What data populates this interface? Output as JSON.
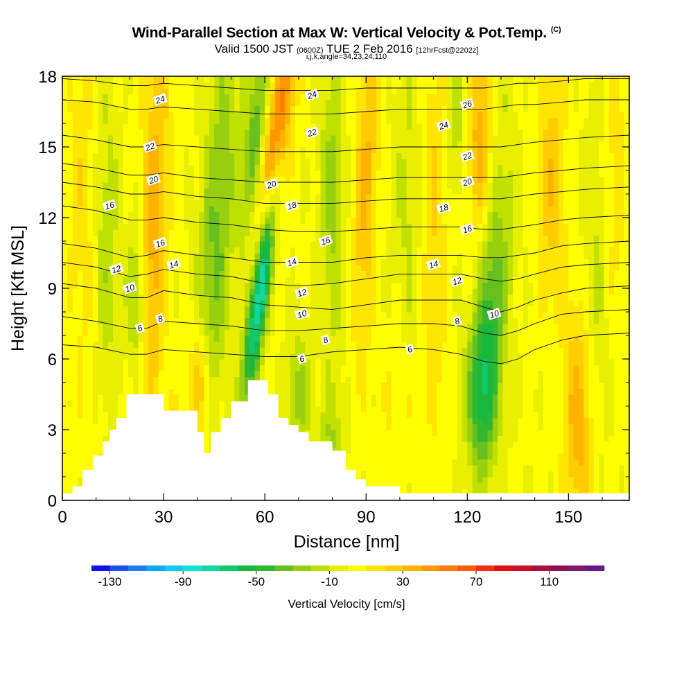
{
  "header": {
    "title": "Wind-Parallel Section at Max W: Vertical Velocity & Pot.Temp.",
    "copyright": "(C)",
    "subtitle_valid": "Valid 1500 JST",
    "subtitle_utc": "(0600Z)",
    "subtitle_date": "TUE 2 Feb 2016",
    "subtitle_fcst": "[12hrFcst@2202z]",
    "param_line": "i,j,k,angle=34,23,24,110"
  },
  "chart_data": {
    "type": "heatmap",
    "xlabel": "Distance [nm]",
    "ylabel": "Height [Kft MSL]",
    "xlim": [
      0,
      168
    ],
    "ylim": [
      0,
      18
    ],
    "x_ticks": [
      0,
      30,
      60,
      90,
      120,
      150
    ],
    "y_ticks": [
      0,
      3,
      6,
      9,
      12,
      15,
      18
    ],
    "grid": false,
    "colorbar": {
      "title": "Vertical Velocity [cm/s]",
      "tick_labels": [
        -130,
        -90,
        -50,
        -10,
        30,
        70,
        110
      ],
      "bounds": [
        -140,
        140
      ],
      "step": 10,
      "colors": [
        "#1010e8",
        "#1e50f0",
        "#1e80f0",
        "#10a8f0",
        "#10c8f0",
        "#10e0d8",
        "#10d8a0",
        "#10c870",
        "#18b840",
        "#30b830",
        "#68c020",
        "#98d010",
        "#c0e000",
        "#e8f000",
        "#ffff00",
        "#ffe600",
        "#ffcc00",
        "#ffb200",
        "#ff9800",
        "#ff7c00",
        "#ff5a00",
        "#f03010",
        "#e01010",
        "#c81028",
        "#a81040",
        "#901050",
        "#801868",
        "#6a1888"
      ]
    },
    "terrain": [
      [
        0,
        0.3
      ],
      [
        3,
        0.3
      ],
      [
        3,
        0.6
      ],
      [
        6,
        0.6
      ],
      [
        6,
        1.3
      ],
      [
        9,
        1.3
      ],
      [
        9,
        1.9
      ],
      [
        12,
        1.9
      ],
      [
        12,
        2.5
      ],
      [
        14,
        2.5
      ],
      [
        14,
        3.0
      ],
      [
        16,
        3.0
      ],
      [
        16,
        3.5
      ],
      [
        19,
        3.5
      ],
      [
        19,
        4.5
      ],
      [
        30,
        4.5
      ],
      [
        30,
        3.8
      ],
      [
        40,
        3.8
      ],
      [
        40,
        2.9
      ],
      [
        42,
        2.9
      ],
      [
        42,
        2.0
      ],
      [
        44,
        2.0
      ],
      [
        44,
        2.9
      ],
      [
        47,
        2.9
      ],
      [
        47,
        3.5
      ],
      [
        50,
        3.5
      ],
      [
        50,
        4.2
      ],
      [
        55,
        4.2
      ],
      [
        55,
        5.1
      ],
      [
        61,
        5.1
      ],
      [
        61,
        4.5
      ],
      [
        64,
        4.5
      ],
      [
        64,
        3.5
      ],
      [
        67,
        3.5
      ],
      [
        67,
        3.2
      ],
      [
        70,
        3.2
      ],
      [
        70,
        2.9
      ],
      [
        73,
        2.9
      ],
      [
        73,
        2.5
      ],
      [
        80,
        2.5
      ],
      [
        80,
        2.1
      ],
      [
        84,
        2.1
      ],
      [
        84,
        1.3
      ],
      [
        87,
        1.3
      ],
      [
        87,
        0.9
      ],
      [
        90,
        0.9
      ],
      [
        90,
        0.6
      ],
      [
        100,
        0.6
      ],
      [
        100,
        0.3
      ],
      [
        168,
        0.3
      ]
    ],
    "theta_contours": [
      {
        "label": "6",
        "x": [
          0,
          10,
          20,
          25,
          30,
          40,
          50,
          60,
          70,
          80,
          90,
          100,
          110,
          118,
          125,
          130,
          135,
          140,
          148,
          155,
          168
        ],
        "y": [
          6.6,
          6.5,
          6.2,
          6.2,
          6.4,
          6.3,
          6.2,
          6.1,
          6.1,
          6.3,
          6.4,
          6.5,
          6.4,
          6.2,
          5.9,
          5.8,
          6.0,
          6.4,
          6.8,
          7.0,
          7.1
        ]
      },
      {
        "label": "8",
        "x": [
          0,
          10,
          20,
          25,
          30,
          40,
          50,
          60,
          70,
          80,
          90,
          100,
          110,
          118,
          125,
          130,
          135,
          140,
          148,
          155,
          168
        ],
        "y": [
          7.8,
          7.6,
          7.3,
          7.3,
          7.6,
          7.5,
          7.4,
          7.2,
          7.2,
          7.3,
          7.4,
          7.5,
          7.5,
          7.4,
          7.1,
          7.0,
          7.2,
          7.5,
          7.9,
          8.0,
          8.1
        ]
      },
      {
        "label": "10",
        "x": [
          0,
          10,
          20,
          25,
          30,
          40,
          50,
          60,
          70,
          80,
          90,
          100,
          110,
          118,
          125,
          130,
          135,
          140,
          148,
          155,
          168
        ],
        "y": [
          9.2,
          9.0,
          8.6,
          8.6,
          8.9,
          8.7,
          8.6,
          8.3,
          8.2,
          8.1,
          8.3,
          8.5,
          8.5,
          8.5,
          8.2,
          8.0,
          8.2,
          8.5,
          8.8,
          9.0,
          9.1
        ]
      },
      {
        "label": "12",
        "x": [
          0,
          10,
          20,
          25,
          30,
          40,
          50,
          60,
          70,
          80,
          90,
          100,
          110,
          118,
          125,
          130,
          135,
          140,
          148,
          155,
          168
        ],
        "y": [
          10.1,
          9.9,
          9.5,
          9.6,
          9.8,
          9.6,
          9.5,
          9.2,
          9.1,
          9.2,
          9.4,
          9.6,
          9.6,
          9.6,
          9.4,
          9.3,
          9.4,
          9.6,
          9.9,
          10.0,
          10.1
        ]
      },
      {
        "label": "14",
        "x": [
          0,
          10,
          20,
          25,
          30,
          40,
          50,
          60,
          70,
          80,
          90,
          100,
          110,
          118,
          125,
          130,
          135,
          140,
          148,
          155,
          168
        ],
        "y": [
          10.9,
          10.7,
          10.3,
          10.4,
          10.6,
          10.4,
          10.3,
          10.1,
          10.1,
          10.1,
          10.3,
          10.4,
          10.4,
          10.4,
          10.3,
          10.3,
          10.4,
          10.5,
          10.8,
          10.9,
          11.0
        ]
      },
      {
        "label": "16",
        "x": [
          0,
          10,
          20,
          25,
          30,
          40,
          50,
          60,
          70,
          80,
          90,
          100,
          110,
          118,
          125,
          130,
          135,
          140,
          148,
          155,
          168
        ],
        "y": [
          12.5,
          12.3,
          11.9,
          11.9,
          12.0,
          11.8,
          11.7,
          11.5,
          11.4,
          11.4,
          11.5,
          11.6,
          11.6,
          11.6,
          11.5,
          11.5,
          11.6,
          11.7,
          11.9,
          12.0,
          12.1
        ]
      },
      {
        "label": "18",
        "x": [
          0,
          10,
          20,
          25,
          30,
          40,
          50,
          60,
          70,
          80,
          90,
          100,
          110,
          118,
          125,
          130,
          135,
          140,
          148,
          155,
          168
        ],
        "y": [
          13.5,
          13.3,
          13.0,
          13.0,
          13.1,
          12.9,
          12.8,
          12.6,
          12.6,
          12.6,
          12.7,
          12.8,
          12.8,
          12.8,
          12.8,
          12.8,
          12.9,
          13.0,
          13.1,
          13.2,
          13.3
        ]
      },
      {
        "label": "20",
        "x": [
          0,
          10,
          20,
          25,
          30,
          40,
          50,
          60,
          70,
          80,
          90,
          100,
          110,
          118,
          125,
          130,
          135,
          140,
          148,
          155,
          168
        ],
        "y": [
          14.3,
          14.1,
          13.8,
          13.8,
          13.9,
          13.7,
          13.6,
          13.5,
          13.5,
          13.5,
          13.6,
          13.7,
          13.7,
          13.7,
          13.7,
          13.7,
          13.8,
          13.9,
          14.0,
          14.1,
          14.2
        ]
      },
      {
        "label": "22",
        "x": [
          0,
          10,
          20,
          25,
          30,
          40,
          50,
          60,
          70,
          80,
          90,
          100,
          110,
          118,
          125,
          130,
          135,
          140,
          148,
          155,
          168
        ],
        "y": [
          15.5,
          15.3,
          15.0,
          15.0,
          15.1,
          15.0,
          14.9,
          14.8,
          14.8,
          14.8,
          14.9,
          15.0,
          15.0,
          15.0,
          15.0,
          15.0,
          15.1,
          15.2,
          15.3,
          15.4,
          15.5
        ]
      },
      {
        "label": "24",
        "x": [
          0,
          10,
          20,
          25,
          30,
          40,
          50,
          60,
          70,
          80,
          90,
          100,
          110,
          118,
          125,
          130,
          135,
          140,
          148,
          155,
          168
        ],
        "y": [
          17.0,
          16.9,
          16.6,
          16.6,
          16.7,
          16.6,
          16.5,
          16.4,
          16.4,
          16.4,
          16.5,
          16.6,
          16.6,
          16.6,
          16.6,
          16.7,
          16.8,
          16.8,
          16.9,
          17.0,
          17.0
        ]
      },
      {
        "label": "26",
        "x": [
          0,
          10,
          20,
          25,
          30,
          40,
          50,
          60,
          70,
          80,
          90,
          100,
          110,
          118,
          125,
          130,
          135,
          140,
          148,
          155,
          168
        ],
        "y": [
          17.9,
          17.8,
          17.6,
          17.6,
          17.7,
          17.6,
          17.5,
          17.4,
          17.4,
          17.4,
          17.5,
          17.5,
          17.5,
          17.5,
          17.5,
          17.6,
          17.7,
          17.7,
          17.8,
          17.9,
          17.9
        ]
      }
    ],
    "contour_labels": [
      {
        "text": "24",
        "x": 29,
        "y": 17.0
      },
      {
        "text": "24",
        "x": 74,
        "y": 17.2
      },
      {
        "text": "26",
        "x": 120,
        "y": 16.8
      },
      {
        "text": "24",
        "x": 113,
        "y": 15.9
      },
      {
        "text": "22",
        "x": 26,
        "y": 15.0
      },
      {
        "text": "22",
        "x": 74,
        "y": 15.6
      },
      {
        "text": "22",
        "x": 120,
        "y": 14.6
      },
      {
        "text": "20",
        "x": 27,
        "y": 13.6
      },
      {
        "text": "20",
        "x": 62,
        "y": 13.4
      },
      {
        "text": "20",
        "x": 120,
        "y": 13.5
      },
      {
        "text": "18",
        "x": 68,
        "y": 12.5
      },
      {
        "text": "18",
        "x": 113,
        "y": 12.4
      },
      {
        "text": "16",
        "x": 14,
        "y": 12.5
      },
      {
        "text": "16",
        "x": 120,
        "y": 11.5
      },
      {
        "text": "16",
        "x": 29,
        "y": 10.9
      },
      {
        "text": "16",
        "x": 78,
        "y": 11.0
      },
      {
        "text": "14",
        "x": 33,
        "y": 10.0
      },
      {
        "text": "14",
        "x": 68,
        "y": 10.1
      },
      {
        "text": "14",
        "x": 110,
        "y": 10.0
      },
      {
        "text": "12",
        "x": 16,
        "y": 9.8
      },
      {
        "text": "12",
        "x": 71,
        "y": 8.8
      },
      {
        "text": "12",
        "x": 117,
        "y": 9.3
      },
      {
        "text": "10",
        "x": 20,
        "y": 9.0
      },
      {
        "text": "10",
        "x": 71,
        "y": 7.9
      },
      {
        "text": "10",
        "x": 128,
        "y": 7.9
      },
      {
        "text": "8",
        "x": 29,
        "y": 7.7
      },
      {
        "text": "8",
        "x": 78,
        "y": 6.8
      },
      {
        "text": "8",
        "x": 117,
        "y": 7.6
      },
      {
        "text": "6",
        "x": 23,
        "y": 7.3
      },
      {
        "text": "6",
        "x": 71,
        "y": 6.0
      },
      {
        "text": "6",
        "x": 103,
        "y": 6.4
      }
    ],
    "w_features": [
      {
        "x": 59,
        "y": 9.5,
        "sx": 2.0,
        "sy": 3.5,
        "tilt": -0.4,
        "w": -110
      },
      {
        "x": 63,
        "y": 14.5,
        "sx": 2.5,
        "sy": 4.0,
        "tilt": -0.4,
        "w": 70
      },
      {
        "x": 57,
        "y": 15.5,
        "sx": 2.0,
        "sy": 3.0,
        "tilt": -0.3,
        "w": -40
      },
      {
        "x": 45,
        "y": 10,
        "sx": 3.5,
        "sy": 7.5,
        "tilt": -0.2,
        "w": -35
      },
      {
        "x": 27,
        "y": 11.5,
        "sx": 3.0,
        "sy": 6.0,
        "tilt": -0.1,
        "w": 35
      },
      {
        "x": 41,
        "y": 5,
        "sx": 2.5,
        "sy": 2.0,
        "tilt": 0,
        "w": 40
      },
      {
        "x": 22,
        "y": 8.5,
        "sx": 2.0,
        "sy": 2.5,
        "tilt": 0,
        "w": -30
      },
      {
        "x": 13,
        "y": 11,
        "sx": 2.5,
        "sy": 5.0,
        "tilt": 0,
        "w": -20
      },
      {
        "x": 6,
        "y": 13,
        "sx": 3.0,
        "sy": 6.0,
        "tilt": 0,
        "w": 15
      },
      {
        "x": 90,
        "y": 13.5,
        "sx": 2.5,
        "sy": 5.0,
        "tilt": -0.1,
        "w": 30
      },
      {
        "x": 80,
        "y": 13,
        "sx": 2.5,
        "sy": 5.0,
        "tilt": 0,
        "w": -25
      },
      {
        "x": 103,
        "y": 12.5,
        "sx": 3.5,
        "sy": 5.5,
        "tilt": 0,
        "w": -15
      },
      {
        "x": 110,
        "y": 12,
        "sx": 3.0,
        "sy": 6.0,
        "tilt": 0,
        "w": 20
      },
      {
        "x": 124,
        "y": 15.5,
        "sx": 3.0,
        "sy": 3.0,
        "tilt": 0,
        "w": 35
      },
      {
        "x": 117,
        "y": 16,
        "sx": 2.0,
        "sy": 2.5,
        "tilt": 0,
        "w": -20
      },
      {
        "x": 124,
        "y": 4.5,
        "sx": 3.0,
        "sy": 2.5,
        "tilt": 0,
        "w": -55
      },
      {
        "x": 127,
        "y": 8.0,
        "sx": 2.5,
        "sy": 3.0,
        "tilt": 0,
        "w": -30
      },
      {
        "x": 130,
        "y": 12,
        "sx": 3.0,
        "sy": 4.5,
        "tilt": 0,
        "w": -20
      },
      {
        "x": 145,
        "y": 13.5,
        "sx": 3.0,
        "sy": 4.0,
        "tilt": 0,
        "w": 25
      },
      {
        "x": 153,
        "y": 3.5,
        "sx": 3.0,
        "sy": 3.5,
        "tilt": 0,
        "w": 35
      },
      {
        "x": 158,
        "y": 9.5,
        "sx": 3.0,
        "sy": 5.0,
        "tilt": 0,
        "w": -15
      },
      {
        "x": 164,
        "y": 14,
        "sx": 2.5,
        "sy": 5.0,
        "tilt": 0,
        "w": 15
      },
      {
        "x": 70,
        "y": 4.5,
        "sx": 2.5,
        "sy": 2.0,
        "tilt": 0,
        "w": -25
      },
      {
        "x": 80,
        "y": 2.5,
        "sx": 2.5,
        "sy": 1.5,
        "tilt": 0,
        "w": -20
      },
      {
        "x": 33,
        "y": 2,
        "sx": 10,
        "sy": 1.8,
        "tilt": 0,
        "w": 10
      },
      {
        "x": 100,
        "y": 4,
        "sx": 4,
        "sy": 2.5,
        "tilt": 0,
        "w": 10
      }
    ]
  }
}
